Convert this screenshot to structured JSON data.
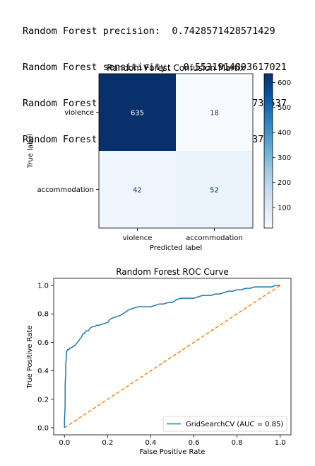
{
  "metrics": [
    "Random Forest precision:  0.7428571428571429",
    "Random Forest sensitivity:  0.5531914893617021",
    "Random Forest specificity:  0.9724349157733537",
    "Random Forest accuracy:  0.9196787148594378"
  ],
  "chart_data": [
    {
      "type": "heatmap",
      "title": "Random Forest Confusion Martix",
      "xlabel": "Predicted label",
      "ylabel": "True label",
      "x_categories": [
        "violence",
        "accommodation"
      ],
      "y_categories": [
        "violence",
        "accommodation"
      ],
      "values": [
        [
          635,
          18
        ],
        [
          42,
          52
        ]
      ],
      "colormap": "Blues",
      "colorbar": {
        "ticks": [
          "100",
          "200",
          "300",
          "400",
          "500",
          "600"
        ],
        "range": [
          18,
          635
        ]
      }
    },
    {
      "type": "line",
      "title": "Random Forest ROC Curve",
      "xlabel": "False Positive Rate",
      "ylabel": "True Positive Rate",
      "xlim": [
        -0.05,
        1.05
      ],
      "ylim": [
        -0.05,
        1.05
      ],
      "xticks": [
        "0.0",
        "0.2",
        "0.4",
        "0.6",
        "0.8",
        "1.0"
      ],
      "yticks": [
        "0.0",
        "0.2",
        "0.4",
        "0.6",
        "0.8",
        "1.0"
      ],
      "legend_position": "lower-right",
      "series": [
        {
          "name": "GridSearchCV (AUC = 0.85)",
          "color": "#1f77b4",
          "x": [
            0.0,
            0.0,
            0.003,
            0.003,
            0.006,
            0.006,
            0.009,
            0.009,
            0.012,
            0.015,
            0.02,
            0.025,
            0.03,
            0.04,
            0.05,
            0.06,
            0.07,
            0.08,
            0.085,
            0.09,
            0.1,
            0.11,
            0.115,
            0.12,
            0.13,
            0.14,
            0.15,
            0.16,
            0.18,
            0.2,
            0.21,
            0.22,
            0.24,
            0.26,
            0.28,
            0.3,
            0.32,
            0.34,
            0.36,
            0.38,
            0.4,
            0.42,
            0.44,
            0.46,
            0.48,
            0.5,
            0.52,
            0.54,
            0.56,
            0.58,
            0.6,
            0.62,
            0.64,
            0.66,
            0.68,
            0.7,
            0.72,
            0.74,
            0.76,
            0.78,
            0.8,
            0.82,
            0.84,
            0.86,
            0.88,
            0.9,
            0.92,
            0.94,
            0.96,
            0.98,
            1.0
          ],
          "y": [
            0.0,
            0.05,
            0.15,
            0.3,
            0.38,
            0.45,
            0.5,
            0.53,
            0.54,
            0.55,
            0.55,
            0.56,
            0.56,
            0.57,
            0.58,
            0.6,
            0.62,
            0.64,
            0.66,
            0.66,
            0.68,
            0.68,
            0.69,
            0.7,
            0.71,
            0.71,
            0.72,
            0.72,
            0.73,
            0.74,
            0.76,
            0.77,
            0.78,
            0.79,
            0.81,
            0.83,
            0.84,
            0.85,
            0.85,
            0.85,
            0.85,
            0.86,
            0.87,
            0.87,
            0.88,
            0.88,
            0.9,
            0.91,
            0.91,
            0.91,
            0.91,
            0.92,
            0.93,
            0.93,
            0.93,
            0.94,
            0.94,
            0.95,
            0.96,
            0.96,
            0.97,
            0.97,
            0.98,
            0.98,
            0.99,
            0.99,
            0.99,
            0.99,
            0.99,
            1.0,
            1.0
          ]
        },
        {
          "name": "",
          "color": "#ff7f0e",
          "style": "dashed",
          "x": [
            0.0,
            1.0
          ],
          "y": [
            0.0,
            1.0
          ]
        }
      ]
    }
  ]
}
